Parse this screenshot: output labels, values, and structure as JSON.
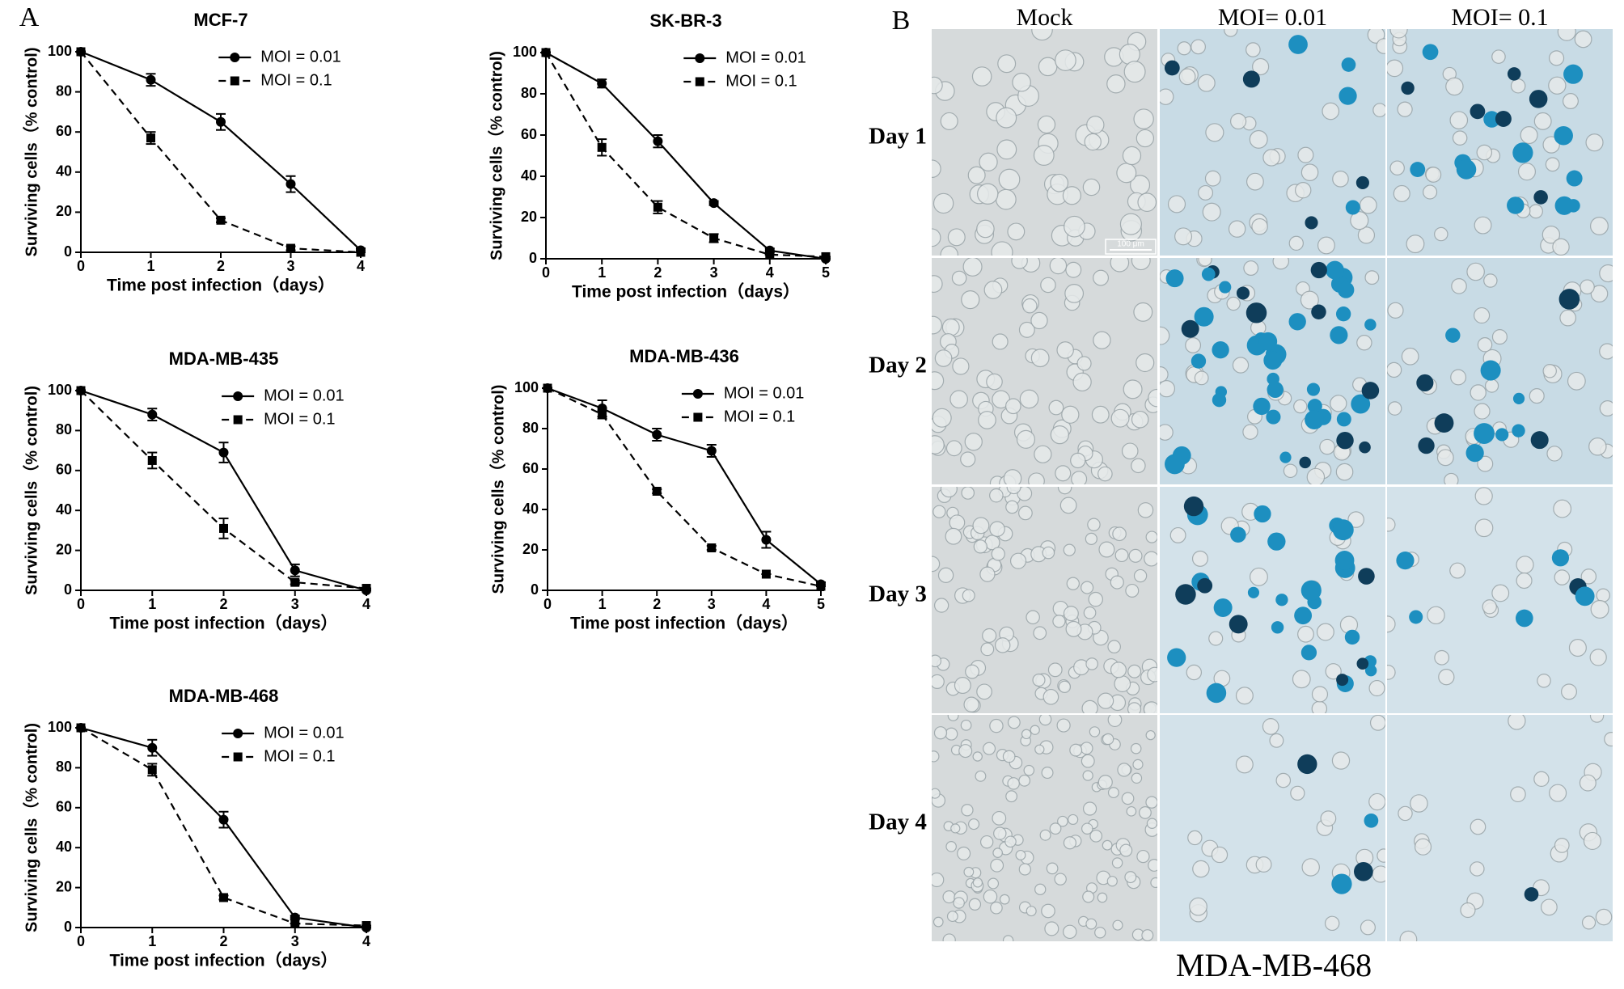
{
  "panel_labels": [
    "A",
    "B"
  ],
  "chart_data": [
    {
      "type": "line",
      "title": "MCF-7",
      "xlabel": "Time post infection（days）",
      "ylabel": "Surviving cells（% control)",
      "x": [
        0,
        1,
        2,
        3,
        4
      ],
      "xlim": [
        0,
        4
      ],
      "xticks": [
        0,
        1,
        2,
        3,
        4
      ],
      "ylim": [
        0,
        100
      ],
      "yticks": [
        0,
        20,
        40,
        60,
        80,
        100
      ],
      "legend": "upper right",
      "series": [
        {
          "name": "MOI = 0.01",
          "color": "#000000",
          "linestyle": "solid",
          "marker": "circle",
          "values": [
            100,
            86,
            65,
            34,
            1
          ],
          "errors": [
            0,
            3,
            4,
            4,
            1
          ]
        },
        {
          "name": "MOI = 0.1",
          "color": "#000000",
          "linestyle": "dashed",
          "marker": "square",
          "values": [
            100,
            57,
            16,
            2,
            0
          ],
          "errors": [
            0,
            3,
            1,
            1,
            0
          ]
        }
      ]
    },
    {
      "type": "line",
      "title": "SK-BR-3",
      "xlabel": "Time post infection（days）",
      "ylabel": "Surviving cells（% control)",
      "x": [
        0,
        1,
        2,
        3,
        4,
        5
      ],
      "xlim": [
        0,
        5
      ],
      "xticks": [
        0,
        1,
        2,
        3,
        4,
        5
      ],
      "ylim": [
        0,
        100
      ],
      "yticks": [
        0,
        20,
        40,
        60,
        80,
        100
      ],
      "legend": "upper right",
      "series": [
        {
          "name": "MOI = 0.01",
          "color": "#000000",
          "linestyle": "solid",
          "marker": "circle",
          "values": [
            100,
            85,
            57,
            27,
            4,
            0
          ],
          "errors": [
            0,
            2,
            3,
            1,
            1,
            0
          ]
        },
        {
          "name": "MOI = 0.1",
          "color": "#000000",
          "linestyle": "dashed",
          "marker": "square",
          "values": [
            100,
            54,
            25,
            10,
            2,
            1
          ],
          "errors": [
            0,
            4,
            3,
            2,
            0,
            0
          ]
        }
      ]
    },
    {
      "type": "line",
      "title": "MDA-MB-435",
      "xlabel": "Time post infection（days）",
      "ylabel": "Surviving cells（% control)",
      "x": [
        0,
        1,
        2,
        3,
        4
      ],
      "xlim": [
        0,
        4
      ],
      "xticks": [
        0,
        1,
        2,
        3,
        4
      ],
      "ylim": [
        0,
        100
      ],
      "yticks": [
        0,
        20,
        40,
        60,
        80,
        100
      ],
      "legend": "upper right",
      "series": [
        {
          "name": "MOI = 0.01",
          "color": "#000000",
          "linestyle": "solid",
          "marker": "circle",
          "values": [
            100,
            88,
            69,
            10,
            0
          ],
          "errors": [
            0,
            3,
            5,
            3,
            0
          ]
        },
        {
          "name": "MOI = 0.1",
          "color": "#000000",
          "linestyle": "dashed",
          "marker": "square",
          "values": [
            100,
            65,
            31,
            4,
            1
          ],
          "errors": [
            0,
            4,
            5,
            1,
            0
          ]
        }
      ]
    },
    {
      "type": "line",
      "title": "MDA-MB-436",
      "xlabel": "Time post infection（days）",
      "ylabel": "Surviving cells（% control)",
      "x": [
        0,
        1,
        2,
        3,
        4,
        5
      ],
      "xlim": [
        0,
        5
      ],
      "xticks": [
        0,
        1,
        2,
        3,
        4,
        5
      ],
      "ylim": [
        0,
        100
      ],
      "yticks": [
        0,
        20,
        40,
        60,
        80,
        100
      ],
      "legend": "upper right",
      "series": [
        {
          "name": "MOI = 0.01",
          "color": "#000000",
          "linestyle": "solid",
          "marker": "circle",
          "values": [
            100,
            90,
            77,
            69,
            25,
            3
          ],
          "errors": [
            0,
            4,
            3,
            3,
            4,
            1
          ]
        },
        {
          "name": "MOI = 0.1",
          "color": "#000000",
          "linestyle": "dashed",
          "marker": "square",
          "values": [
            100,
            87,
            49,
            21,
            8,
            2
          ],
          "errors": [
            0,
            2,
            1,
            1,
            0,
            0
          ]
        }
      ]
    },
    {
      "type": "line",
      "title": "MDA-MB-468",
      "xlabel": "Time post infection（days）",
      "ylabel": "Surviving cells（% control)",
      "x": [
        0,
        1,
        2,
        3,
        4
      ],
      "xlim": [
        0,
        4
      ],
      "xticks": [
        0,
        1,
        2,
        3,
        4
      ],
      "ylim": [
        0,
        100
      ],
      "yticks": [
        0,
        20,
        40,
        60,
        80,
        100
      ],
      "legend": "upper right",
      "series": [
        {
          "name": "MOI = 0.01",
          "color": "#000000",
          "linestyle": "solid",
          "marker": "circle",
          "values": [
            100,
            90,
            54,
            5,
            0
          ],
          "errors": [
            0,
            4,
            4,
            1,
            0
          ]
        },
        {
          "name": "MOI = 0.1",
          "color": "#000000",
          "linestyle": "dashed",
          "marker": "square",
          "values": [
            100,
            79,
            15,
            2,
            1
          ],
          "errors": [
            0,
            3,
            1,
            0,
            0
          ]
        }
      ]
    }
  ],
  "micrographs": {
    "columns": [
      "Mock",
      "MOI= 0.01",
      "MOI= 0.1"
    ],
    "rows": [
      "Day 1",
      "Day 2",
      "Day 3",
      "Day 4"
    ],
    "scale_bar": "100 μm",
    "cell_line": "MDA-MB-468"
  }
}
